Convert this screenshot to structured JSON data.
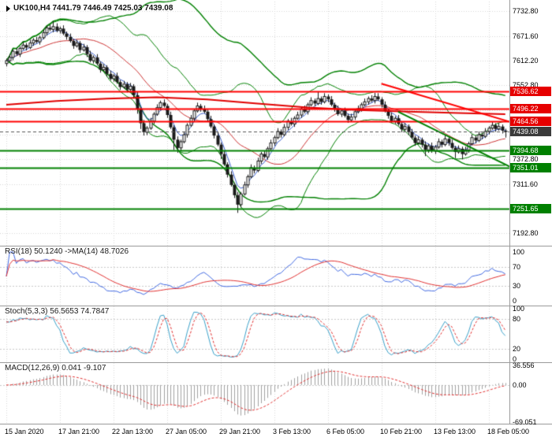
{
  "chart_data": {
    "type": "candlestick",
    "title": "UK100,H4",
    "symbol_info": "UK100,H4 7441.79 7446.49 7425.03 7439.08",
    "current_bar": {
      "open": 7441.79,
      "high": 7446.49,
      "low": 7425.03,
      "close": 7439.08
    },
    "bars_per_label": 16,
    "x_labels": [
      "15 Jan 2020",
      "17 Jan 21:00",
      "22 Jan 13:00",
      "27 Jan 05:00",
      "29 Jan 21:00",
      "3 Feb 13:00",
      "6 Feb 05:00",
      "10 Feb 21:00",
      "13 Feb 13:00",
      "18 Feb 05:00"
    ],
    "y_axis": {
      "top_value": 7732.8,
      "bottom_value": 7192.8,
      "gridlines": [
        7732.8,
        7671.6,
        7612.2,
        7552.8,
        7492.4,
        7433.0,
        7372.8,
        7311.6,
        7252.4,
        7192.8
      ],
      "tick_labels": [
        {
          "value": 7732.8,
          "label": "7732.80"
        },
        {
          "value": 7671.6,
          "label": "7671.60"
        },
        {
          "value": 7612.2,
          "label": "7612.20"
        },
        {
          "value": 7552.8,
          "label": "7552.80"
        },
        {
          "value": 7372.8,
          "label": "7372.80"
        },
        {
          "value": 7311.6,
          "label": "7311.60"
        },
        {
          "value": 7192.8,
          "label": "7192.80"
        }
      ]
    },
    "candles": [
      [
        7605,
        7617,
        7598,
        7612
      ],
      [
        7612,
        7628,
        7608,
        7620
      ],
      [
        7620,
        7640,
        7613,
        7635
      ],
      [
        7635,
        7643,
        7624,
        7628
      ],
      [
        7628,
        7647,
        7621,
        7642
      ],
      [
        7642,
        7658,
        7638,
        7650
      ],
      [
        7650,
        7655,
        7637,
        7644
      ],
      [
        7644,
        7663,
        7640,
        7655
      ],
      [
        7655,
        7667,
        7648,
        7662
      ],
      [
        7662,
        7670,
        7654,
        7658
      ],
      [
        7658,
        7673,
        7651,
        7668
      ],
      [
        7668,
        7688,
        7664,
        7680
      ],
      [
        7680,
        7697,
        7673,
        7692
      ],
      [
        7692,
        7700,
        7684,
        7688
      ],
      [
        7688,
        7708,
        7681,
        7695
      ],
      [
        7695,
        7703,
        7681,
        7685
      ],
      [
        7685,
        7695,
        7678,
        7690
      ],
      [
        7690,
        7698,
        7674,
        7678
      ],
      [
        7678,
        7683,
        7663,
        7670
      ],
      [
        7670,
        7678,
        7656,
        7660
      ],
      [
        7660,
        7665,
        7641,
        7648
      ],
      [
        7648,
        7663,
        7644,
        7655
      ],
      [
        7655,
        7660,
        7631,
        7638
      ],
      [
        7638,
        7653,
        7634,
        7645
      ],
      [
        7645,
        7650,
        7621,
        7628
      ],
      [
        7628,
        7636,
        7608,
        7612
      ],
      [
        7612,
        7625,
        7605,
        7620
      ],
      [
        7620,
        7628,
        7601,
        7605
      ],
      [
        7605,
        7610,
        7583,
        7590
      ],
      [
        7590,
        7604,
        7586,
        7596
      ],
      [
        7596,
        7601,
        7573,
        7580
      ],
      [
        7580,
        7588,
        7564,
        7568
      ],
      [
        7568,
        7580,
        7561,
        7575
      ],
      [
        7575,
        7583,
        7556,
        7560
      ],
      [
        7560,
        7565,
        7541,
        7548
      ],
      [
        7548,
        7563,
        7544,
        7555
      ],
      [
        7555,
        7560,
        7535,
        7542
      ],
      [
        7542,
        7558,
        7538,
        7550
      ],
      [
        7550,
        7555,
        7521,
        7528
      ],
      [
        7528,
        7536,
        7483,
        7495
      ],
      [
        7495,
        7500,
        7446,
        7460
      ],
      [
        7460,
        7468,
        7430,
        7438
      ],
      [
        7438,
        7453,
        7431,
        7448
      ],
      [
        7448,
        7473,
        7444,
        7465
      ],
      [
        7465,
        7487,
        7458,
        7482
      ],
      [
        7482,
        7506,
        7478,
        7498
      ],
      [
        7498,
        7515,
        7491,
        7510
      ],
      [
        7510,
        7518,
        7498,
        7502
      ],
      [
        7502,
        7507,
        7473,
        7480
      ],
      [
        7480,
        7488,
        7446,
        7450
      ],
      [
        7450,
        7455,
        7395,
        7420
      ],
      [
        7420,
        7428,
        7388,
        7400
      ],
      [
        7400,
        7420,
        7393,
        7415
      ],
      [
        7415,
        7440,
        7411,
        7432
      ],
      [
        7432,
        7460,
        7425,
        7455
      ],
      [
        7455,
        7480,
        7451,
        7472
      ],
      [
        7472,
        7495,
        7465,
        7490
      ],
      [
        7490,
        7510,
        7486,
        7502
      ],
      [
        7502,
        7507,
        7488,
        7495
      ],
      [
        7495,
        7503,
        7484,
        7488
      ],
      [
        7488,
        7493,
        7463,
        7470
      ],
      [
        7470,
        7478,
        7448,
        7452
      ],
      [
        7452,
        7457,
        7423,
        7430
      ],
      [
        7430,
        7438,
        7404,
        7408
      ],
      [
        7408,
        7413,
        7373,
        7385
      ],
      [
        7385,
        7393,
        7356,
        7360
      ],
      [
        7360,
        7365,
        7328,
        7335
      ],
      [
        7335,
        7343,
        7306,
        7310
      ],
      [
        7310,
        7315,
        7278,
        7285
      ],
      [
        7285,
        7293,
        7242,
        7262
      ],
      [
        7262,
        7293,
        7255,
        7288
      ],
      [
        7288,
        7318,
        7284,
        7310
      ],
      [
        7310,
        7335,
        7303,
        7330
      ],
      [
        7330,
        7360,
        7326,
        7352
      ],
      [
        7352,
        7357,
        7338,
        7345
      ],
      [
        7345,
        7376,
        7341,
        7368
      ],
      [
        7368,
        7390,
        7361,
        7385
      ],
      [
        7385,
        7393,
        7374,
        7378
      ],
      [
        7378,
        7403,
        7371,
        7398
      ],
      [
        7398,
        7420,
        7394,
        7412
      ],
      [
        7412,
        7430,
        7405,
        7425
      ],
      [
        7425,
        7448,
        7421,
        7440
      ],
      [
        7440,
        7445,
        7425,
        7432
      ],
      [
        7432,
        7458,
        7428,
        7450
      ],
      [
        7450,
        7470,
        7443,
        7465
      ],
      [
        7465,
        7473,
        7454,
        7458
      ],
      [
        7458,
        7477,
        7451,
        7472
      ],
      [
        7472,
        7488,
        7468,
        7480
      ],
      [
        7480,
        7500,
        7473,
        7495
      ],
      [
        7495,
        7503,
        7484,
        7488
      ],
      [
        7488,
        7510,
        7481,
        7505
      ],
      [
        7505,
        7523,
        7501,
        7515
      ],
      [
        7515,
        7520,
        7501,
        7508
      ],
      [
        7508,
        7536,
        7504,
        7520
      ],
      [
        7520,
        7525,
        7505,
        7512
      ],
      [
        7512,
        7533,
        7508,
        7525
      ],
      [
        7525,
        7530,
        7511,
        7518
      ],
      [
        7518,
        7526,
        7501,
        7505
      ],
      [
        7505,
        7510,
        7488,
        7495
      ],
      [
        7495,
        7503,
        7478,
        7482
      ],
      [
        7482,
        7495,
        7475,
        7490
      ],
      [
        7490,
        7498,
        7474,
        7478
      ],
      [
        7478,
        7483,
        7461,
        7468
      ],
      [
        7468,
        7483,
        7464,
        7475
      ],
      [
        7475,
        7493,
        7468,
        7488
      ],
      [
        7488,
        7503,
        7484,
        7495
      ],
      [
        7495,
        7510,
        7488,
        7505
      ],
      [
        7505,
        7520,
        7501,
        7512
      ],
      [
        7512,
        7525,
        7505,
        7520
      ],
      [
        7520,
        7528,
        7511,
        7515
      ],
      [
        7515,
        7534,
        7508,
        7525
      ],
      [
        7525,
        7533,
        7514,
        7518
      ],
      [
        7518,
        7523,
        7498,
        7505
      ],
      [
        7505,
        7513,
        7486,
        7490
      ],
      [
        7490,
        7495,
        7471,
        7478
      ],
      [
        7478,
        7486,
        7461,
        7465
      ],
      [
        7465,
        7477,
        7458,
        7472
      ],
      [
        7472,
        7480,
        7454,
        7458
      ],
      [
        7458,
        7463,
        7438,
        7445
      ],
      [
        7445,
        7460,
        7441,
        7452
      ],
      [
        7452,
        7457,
        7431,
        7438
      ],
      [
        7438,
        7446,
        7421,
        7425
      ],
      [
        7425,
        7430,
        7405,
        7412
      ],
      [
        7412,
        7428,
        7408,
        7420
      ],
      [
        7420,
        7425,
        7401,
        7408
      ],
      [
        7408,
        7416,
        7380,
        7395
      ],
      [
        7395,
        7410,
        7388,
        7405
      ],
      [
        7405,
        7413,
        7388,
        7392
      ],
      [
        7392,
        7407,
        7385,
        7402
      ],
      [
        7402,
        7423,
        7398,
        7415
      ],
      [
        7415,
        7420,
        7401,
        7408
      ],
      [
        7408,
        7430,
        7404,
        7422
      ],
      [
        7422,
        7427,
        7405,
        7412
      ],
      [
        7412,
        7420,
        7396,
        7400
      ],
      [
        7400,
        7405,
        7375,
        7390
      ],
      [
        7390,
        7406,
        7386,
        7398
      ],
      [
        7398,
        7403,
        7372,
        7385
      ],
      [
        7385,
        7403,
        7381,
        7395
      ],
      [
        7395,
        7415,
        7388,
        7410
      ],
      [
        7410,
        7433,
        7406,
        7425
      ],
      [
        7425,
        7430,
        7411,
        7418
      ],
      [
        7418,
        7440,
        7414,
        7432
      ],
      [
        7432,
        7437,
        7421,
        7428
      ],
      [
        7428,
        7448,
        7424,
        7440
      ],
      [
        7440,
        7453,
        7433,
        7448
      ],
      [
        7448,
        7463,
        7444,
        7455
      ],
      [
        7455,
        7460,
        7439,
        7446
      ],
      [
        7446,
        7460,
        7442,
        7452
      ],
      [
        7452,
        7457,
        7435,
        7442
      ],
      [
        7441.79,
        7446.49,
        7425.03,
        7439.08
      ]
    ],
    "levels": [
      {
        "price": 7536.62,
        "label": "7536.62",
        "color": "#ff0000",
        "box": "#e60000",
        "kind": "resistance"
      },
      {
        "price": 7496.22,
        "label": "7496.22",
        "color": "#ff0000",
        "box": "#e60000",
        "kind": "resistance"
      },
      {
        "price": 7464.56,
        "label": "7464.56",
        "color": "#ff0000",
        "box": "#e60000",
        "kind": "resistance"
      },
      {
        "price": 7394.68,
        "label": "7394.68",
        "color": "#008000",
        "box": "#008000",
        "kind": "support"
      },
      {
        "price": 7351.01,
        "label": "7351.01",
        "color": "#008000",
        "box": "#008000",
        "kind": "support"
      },
      {
        "price": 7251.65,
        "label": "7251.65",
        "color": "#008000",
        "box": "#008000",
        "kind": "support"
      }
    ],
    "current_price": {
      "value": 7439.08,
      "label": "7439.08",
      "box": "#3a3a3a"
    },
    "trendlines": [
      {
        "from": [
          112,
          7556
        ],
        "to": [
          151,
          7462
        ],
        "color": "#ff0000"
      },
      {
        "from": [
          117,
          7488
        ],
        "to": [
          151,
          7352
        ],
        "color": "#008000"
      }
    ],
    "overlays": {
      "bb_fast": {
        "period": 20,
        "dev": 2.0
      },
      "bb_slow": {
        "period": 45,
        "dev": 2.1
      },
      "ema_fast_period": 5,
      "ma_trend_points": [
        [
          0,
          7505
        ],
        [
          15,
          7514
        ],
        [
          30,
          7520
        ],
        [
          45,
          7523
        ],
        [
          60,
          7518
        ],
        [
          75,
          7508
        ],
        [
          90,
          7498
        ],
        [
          105,
          7492
        ],
        [
          120,
          7488
        ],
        [
          135,
          7485
        ],
        [
          149,
          7482
        ]
      ]
    },
    "indicators": {
      "rsi": {
        "header": "RSI(18) 50.1240 ->MA(14) 48.7026",
        "period": 18,
        "ma_period": 14,
        "levels": [
          70,
          30
        ],
        "scale": [
          {
            "value": 100,
            "label": "100"
          },
          {
            "value": 70,
            "label": "70"
          },
          {
            "value": 30,
            "label": "30"
          },
          {
            "value": 0,
            "label": "0"
          }
        ]
      },
      "stoch": {
        "header": "Stoch(5,3,3) 56.5653 74.7847",
        "k_period": 5,
        "slowing": 3,
        "d_period": 3,
        "levels": [
          80,
          20
        ],
        "scale": [
          {
            "value": 100,
            "label": "100"
          },
          {
            "value": 80,
            "label": "80"
          },
          {
            "value": 20,
            "label": "20"
          },
          {
            "value": 0,
            "label": "0"
          }
        ]
      },
      "macd": {
        "header": "MACD(12,26,9) 0.041 -9.107",
        "fast": 12,
        "slow": 26,
        "signal": 9,
        "scale": [
          {
            "value": 36.556,
            "label": "36.556"
          },
          {
            "value": 0,
            "label": "0.00"
          },
          {
            "value": -69.051,
            "label": "-69.051"
          }
        ]
      }
    },
    "colors": {
      "background": "#ffffff",
      "grid": "#d6d6d6",
      "bull": "#ffffff",
      "bear": "#1a1a1a",
      "outline": "#1a1a1a",
      "bands": "#008000",
      "bb_mid": "#cc3333",
      "ema_fast": "#3a5fcd",
      "ma_trend": "#e00000",
      "current_line": "#555555",
      "rsi_line": "#4169e1",
      "rsi_ma": "#e03030",
      "stoch_k": "#3aa0c8",
      "stoch_d": "#e03030",
      "macd_hist": "#a0a0a0",
      "macd_signal": "#e03030",
      "separator": "#9a9a9a"
    }
  }
}
